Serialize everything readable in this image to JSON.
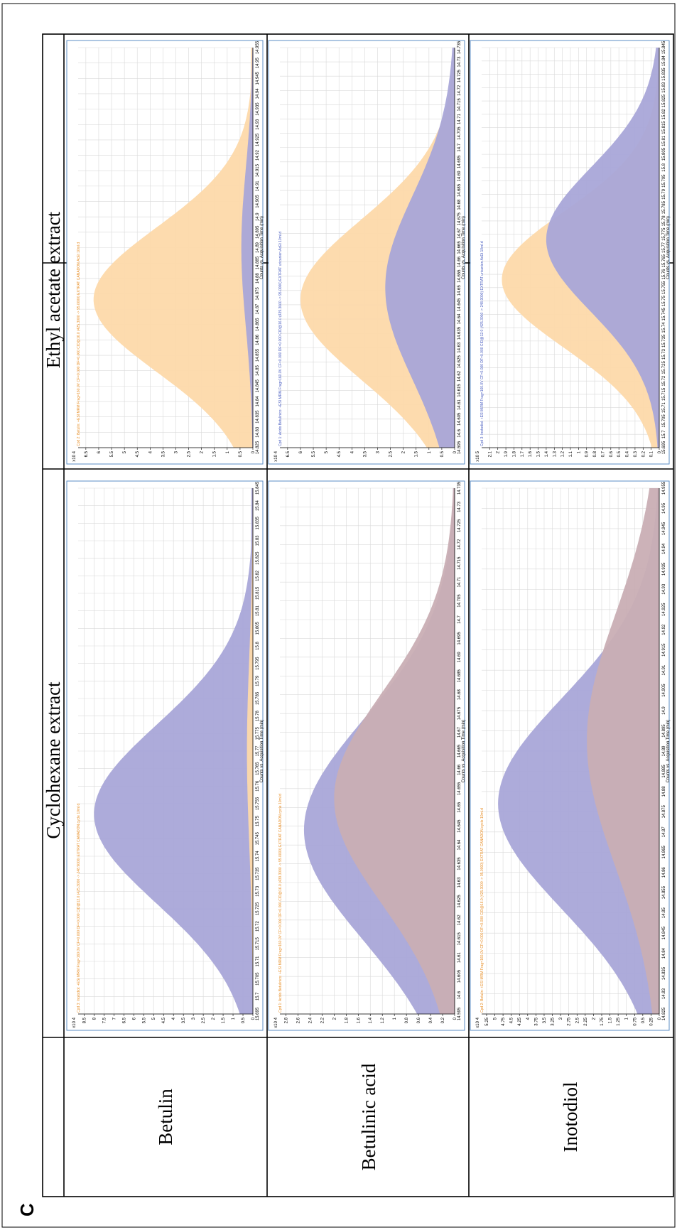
{
  "figure": {
    "panel_letter": "C",
    "columns": [
      "Cyclohexane extract",
      "Ethyl acetate extract"
    ],
    "rows": [
      "Betulin",
      "Betulinic acid",
      "Inotodiol"
    ],
    "xlabel": "Counts vs. Acquisition Time (min)",
    "colors": {
      "blue": "#a9a6d8",
      "orange": "#fdd9aa",
      "overlap": "#c9aeb4",
      "frame": "#5b8ec6",
      "title_orange": "#e8902a",
      "title_blue": "#4a5ec0"
    }
  },
  "chart_data": [
    {
      "type": "area",
      "row": "Betulin",
      "column": "Cyclohexane extract",
      "title": "Cpd 3: Inotodiol: +ESI MRM Frag=160.0V CF=0.000 DF=0.000 CID@12.0 (425.3000 -> 248.9000) EXTRAT CANADON.cycle 10ml.d",
      "title_color": "orange",
      "ylabel": "x10 4",
      "y_ticks": [
        "0",
        "0.5",
        "1",
        "1.5",
        "2",
        "2.5",
        "3",
        "3.5",
        "4",
        "4.5",
        "5",
        "5.5",
        "6",
        "6.5",
        "7",
        "7.5",
        "8",
        "8.5"
      ],
      "ylim": [
        0,
        8.8
      ],
      "x_ticks": [
        "15.695",
        "15.7",
        "15.705",
        "15.71",
        "15.715",
        "15.72",
        "15.725",
        "15.73",
        "15.735",
        "15.74",
        "15.745",
        "15.75",
        "15.755",
        "15.76",
        "15.765",
        "15.77",
        "15.775",
        "15.78",
        "15.785",
        "15.79",
        "15.795",
        "15.8",
        "15.805",
        "15.81",
        "15.815",
        "15.82",
        "15.825",
        "15.83",
        "15.835",
        "15.84",
        "15.845"
      ],
      "xlabel": "Counts vs. Acquisition Time (min)",
      "series": [
        {
          "color": "blue",
          "peak": 8.0,
          "center": 0.38,
          "sigma": 0.17,
          "tail": 0.5
        },
        {
          "color": "orange",
          "peak": 0.3,
          "center": 0.5,
          "sigma": 0.18,
          "tail": 0.0
        }
      ]
    },
    {
      "type": "area",
      "row": "Betulin",
      "column": "Ethyl acetate extract",
      "title": "Cpd 2: Betulin: +ESI MRM Frag=160.0V CF=0.000 DF=0.000 CID@16.0 (425.3000 -> 95.0000) EXTRAT CANADON.AcEt 10ml.d",
      "title_color": "orange",
      "ylabel": "x10 4",
      "y_ticks": [
        "0",
        "0.5",
        "1",
        "1.5",
        "2",
        "2.5",
        "3",
        "3.5",
        "4",
        "4.5",
        "5",
        "5.5",
        "6",
        "6.5"
      ],
      "ylim": [
        0,
        6.8
      ],
      "x_ticks": [
        "14.825",
        "14.83",
        "14.835",
        "14.84",
        "14.845",
        "14.85",
        "14.855",
        "14.86",
        "14.865",
        "14.87",
        "14.875",
        "14.88",
        "14.885",
        "14.89",
        "14.895",
        "14.9",
        "14.905",
        "14.91",
        "14.915",
        "14.92",
        "14.925",
        "14.93",
        "14.935",
        "14.94",
        "14.945",
        "14.95",
        "14.955"
      ],
      "xlabel": "Counts vs. Acquisition Time (min)",
      "series": [
        {
          "color": "orange",
          "peak": 6.2,
          "center": 0.37,
          "sigma": 0.18,
          "tail": 0.5
        },
        {
          "color": "blue",
          "peak": 0.45,
          "center": 0.5,
          "sigma": 0.2,
          "tail": 0.0
        }
      ]
    },
    {
      "type": "area",
      "row": "Betulinic acid",
      "column": "Cyclohexane extract",
      "title": "Cpd 1: Acido Betulinico: +ESI MRM Frag=160.0V CF=0.000 DF=0.000 CID@16.0 (439.3000 -> 95.0000) EXTRAT CANADON.cycle 10ml.d",
      "title_color": "orange",
      "ylabel": "x10 4",
      "y_ticks": [
        "0",
        "0.2",
        "0.4",
        "0.6",
        "0.8",
        "1",
        "1.2",
        "1.4",
        "1.6",
        "1.8",
        "2",
        "2.2",
        "2.4",
        "2.6",
        "2.8"
      ],
      "ylim": [
        0,
        2.9
      ],
      "x_ticks": [
        "14.595",
        "14.6",
        "14.605",
        "14.61",
        "14.615",
        "14.62",
        "14.625",
        "14.63",
        "14.635",
        "14.64",
        "14.645",
        "14.65",
        "14.655",
        "14.66",
        "14.665",
        "14.67",
        "14.675",
        "14.68",
        "14.685",
        "14.69",
        "14.695",
        "14.7",
        "14.705",
        "14.71",
        "14.715",
        "14.72",
        "14.725",
        "14.73",
        "14.735"
      ],
      "xlabel": "Counts vs. Acquisition Time (min)",
      "series": [
        {
          "color": "blue",
          "peak": 2.5,
          "center": 0.35,
          "sigma": 0.21,
          "tail": 0.2
        },
        {
          "color": "overlap",
          "peak": 2.0,
          "center": 0.41,
          "sigma": 0.2,
          "tail": 0.1
        }
      ]
    },
    {
      "type": "area",
      "row": "Betulinic acid",
      "column": "Ethyl acetate extract",
      "title": "Cpd 1: Acido Betulinico: +ESI MRM Frag=160.0V CF=0.000 DF=0.000 CID@16.0 (439.3000 -> 95.0000) EXTRAT uricanien AcEt 10ml.d",
      "title_color": "blue",
      "ylabel": "x10 4",
      "y_ticks": [
        "0",
        "0.5",
        "1",
        "1.5",
        "2",
        "2.5",
        "3",
        "3.5",
        "4",
        "4.5",
        "5",
        "5.5",
        "6",
        "6.5"
      ],
      "ylim": [
        0,
        6.8
      ],
      "x_ticks": [
        "14.595",
        "14.6",
        "14.605",
        "14.61",
        "14.615",
        "14.62",
        "14.625",
        "14.63",
        "14.635",
        "14.64",
        "14.645",
        "14.65",
        "14.655",
        "14.66",
        "14.665",
        "14.67",
        "14.675",
        "14.68",
        "14.685",
        "14.69",
        "14.695",
        "14.7",
        "14.705",
        "14.71",
        "14.715",
        "14.72",
        "14.725",
        "14.73",
        "14.735"
      ],
      "xlabel": "Counts vs. Acquisition Time (min)",
      "series": [
        {
          "color": "orange",
          "peak": 6.0,
          "center": 0.37,
          "sigma": 0.2,
          "tail": 0.3
        },
        {
          "color": "blue",
          "peak": 2.7,
          "center": 0.4,
          "sigma": 0.23,
          "tail": 0.4
        }
      ]
    },
    {
      "type": "area",
      "row": "Inotodiol",
      "column": "Cyclohexane extract",
      "title": "Cpd 2: Betulin: +ESI MRM Frag=160.0V CF=0.000 DF=0.000 CID@16.0 (425.3000 -> 95.0000) EXTRAT CANADON.cycle 10ml.d",
      "title_color": "orange",
      "ylabel": "x10 4",
      "y_ticks": [
        "0",
        "0.25",
        "0.5",
        "0.75",
        "1",
        "1.25",
        "1.5",
        "1.75",
        "2",
        "2.25",
        "2.5",
        "2.75",
        "3",
        "3.25",
        "3.5",
        "3.75",
        "4",
        "4.25",
        "4.5",
        "4.75",
        "5",
        "5.25"
      ],
      "ylim": [
        0,
        5.4
      ],
      "x_ticks": [
        "14.825",
        "14.83",
        "14.835",
        "14.84",
        "14.845",
        "14.85",
        "14.855",
        "14.86",
        "14.865",
        "14.87",
        "14.875",
        "14.88",
        "14.885",
        "14.89",
        "14.895",
        "14.9",
        "14.905",
        "14.91",
        "14.915",
        "14.92",
        "14.925",
        "14.93",
        "14.935",
        "14.94",
        "14.945",
        "14.95",
        "14.955"
      ],
      "xlabel": "Counts vs. Acquisition Time (min)",
      "series": [
        {
          "color": "blue",
          "peak": 4.9,
          "center": 0.4,
          "sigma": 0.2,
          "tail": 0.2
        },
        {
          "color": "overlap",
          "peak": 2.2,
          "center": 0.52,
          "sigma": 0.24,
          "tail": 0.1
        }
      ]
    },
    {
      "type": "area",
      "row": "Inotodiol",
      "column": "Ethyl acetate extract",
      "title": "Cpd 3: Inotodiol: +ESI MRM Frag=160.0V CF=0.000 DF=0.000 CID@12.0 (425.3000 -> 248.9000) EXTRAT uricanien AcEt 10ml.d",
      "title_color": "blue",
      "ylabel": "x10 5",
      "y_ticks": [
        "0",
        "0.1",
        "0.2",
        "0.3",
        "0.4",
        "0.5",
        "0.6",
        "0.7",
        "0.8",
        "0.9",
        "1",
        "1.1",
        "1.2",
        "1.3",
        "1.4",
        "1.5",
        "1.6",
        "1.7",
        "1.8",
        "1.9",
        "2",
        "2.1"
      ],
      "ylim": [
        0,
        2.2
      ],
      "x_ticks": [
        "15.695",
        "15.7",
        "15.705",
        "15.71",
        "15.715",
        "15.72",
        "15.725",
        "15.73",
        "15.735",
        "15.74",
        "15.745",
        "15.75",
        "15.755",
        "15.76",
        "15.765",
        "15.77",
        "15.775",
        "15.78",
        "15.785",
        "15.79",
        "15.795",
        "15.8",
        "15.805",
        "15.81",
        "15.815",
        "15.82",
        "15.825",
        "15.83",
        "15.835",
        "15.84",
        "15.845"
      ],
      "xlabel": "Counts vs. Acquisition Time (min)",
      "series": [
        {
          "color": "orange",
          "peak": 1.95,
          "center": 0.42,
          "sigma": 0.17,
          "tail": 0.1
        },
        {
          "color": "blue",
          "peak": 1.4,
          "center": 0.52,
          "sigma": 0.18,
          "tail": 0.1
        }
      ]
    }
  ]
}
